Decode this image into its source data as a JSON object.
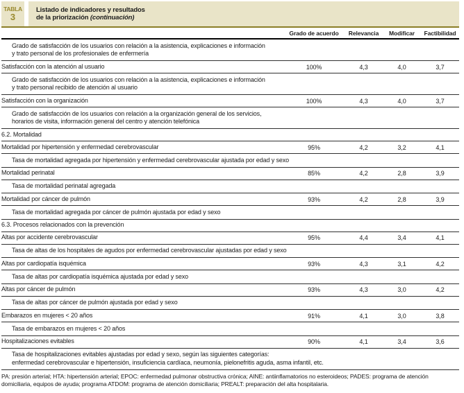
{
  "colors": {
    "band_beige": "#e9e4c8",
    "olive_text": "#99892d",
    "olive_rule": "#8a7d26",
    "rule_dark": "#2f2f2f"
  },
  "header": {
    "badge_label": "TABLA",
    "badge_number": "3",
    "title_line1": "Listado de indicadores y resultados",
    "title_line2_normal": "de la priorización ",
    "title_line2_italic": "(continuación)",
    "columns": [
      "Grado de acuerdo",
      "Relevancia",
      "Modificar",
      "Factibilidad"
    ]
  },
  "table": {
    "rows": [
      {
        "type": "desc",
        "lines": [
          "Grado de satisfacción de los usuarios con relación a la asistencia, explicaciones e información",
          "y trato personal de los profesionales de enfermería"
        ]
      },
      {
        "type": "indicator",
        "label": "Satisfacción con la atención al usuario",
        "values": [
          "100%",
          "4,3",
          "4,0",
          "3,7"
        ]
      },
      {
        "type": "desc",
        "lines": [
          "Grado de satisfacción de los usuarios con relación a la asistencia, explicaciones e información",
          "y trato personal recibido de atención al usuario"
        ]
      },
      {
        "type": "indicator",
        "label": "Satisfacción con la organización",
        "values": [
          "100%",
          "4,3",
          "4,0",
          "3,7"
        ]
      },
      {
        "type": "desc",
        "lines": [
          "Grado de satisfacción de los usuarios con relación a la organización general de los servicios,",
          "horarios de visita, información general del centro y atención telefónica"
        ]
      },
      {
        "type": "section",
        "label": "6.2. Mortalidad"
      },
      {
        "type": "indicator",
        "label": "Mortalidad por hipertensión y enfermedad cerebrovascular",
        "values": [
          "95%",
          "4,2",
          "3,2",
          "4,1"
        ]
      },
      {
        "type": "desc",
        "lines": [
          "Tasa de mortalidad agregada por hipertensión y enfermedad cerebrovascular ajustada por edad y sexo"
        ]
      },
      {
        "type": "indicator",
        "label": "Mortalidad perinatal",
        "values": [
          "85%",
          "4,2",
          "2,8",
          "3,9"
        ]
      },
      {
        "type": "desc",
        "lines": [
          "Tasa de mortalidad perinatal agregada"
        ]
      },
      {
        "type": "indicator",
        "label": "Mortalidad por cáncer de pulmón",
        "values": [
          "93%",
          "4,2",
          "2,8",
          "3,9"
        ]
      },
      {
        "type": "desc",
        "lines": [
          "Tasa de mortalidad agregada por cáncer de pulmón ajustada por edad y sexo"
        ]
      },
      {
        "type": "section",
        "label": "6.3. Procesos relacionados con la prevención"
      },
      {
        "type": "indicator",
        "label": "Altas por accidente cerebrovascular",
        "values": [
          "95%",
          "4,4",
          "3,4",
          "4,1"
        ]
      },
      {
        "type": "desc",
        "lines": [
          "Tasa de altas de los hospitales de agudos por enfermedad cerebrovascular ajustadas por edad y sexo"
        ]
      },
      {
        "type": "indicator",
        "label": "Altas por cardiopatía isquémica",
        "values": [
          "93%",
          "4,3",
          "3,1",
          "4,2"
        ]
      },
      {
        "type": "desc",
        "lines": [
          "Tasa de altas por cardiopatía isquémica ajustada por edad y sexo"
        ]
      },
      {
        "type": "indicator",
        "label": "Altas por cáncer de pulmón",
        "values": [
          "93%",
          "4,3",
          "3,0",
          "4,2"
        ]
      },
      {
        "type": "desc",
        "lines": [
          "Tasa de altas por cáncer de pulmón ajustada por edad y sexo"
        ]
      },
      {
        "type": "indicator",
        "label": "Embarazos en mujeres < 20 años",
        "values": [
          "91%",
          "4,1",
          "3,0",
          "3,8"
        ]
      },
      {
        "type": "desc",
        "lines": [
          "Tasa de embarazos en mujeres < 20 años"
        ]
      },
      {
        "type": "indicator",
        "label": "Hospitalizaciones evitables",
        "values": [
          "90%",
          "4,1",
          "3,4",
          "3,6"
        ]
      },
      {
        "type": "desc",
        "lines": [
          "Tasa de hospitalizaciones evitables ajustadas por edad y sexo, según las siguientes categorías:",
          "enfermedad cerebrovascular e hipertensión, insuficiencia cardíaca, neumonía, pielonefritis aguda, asma infantil, etc."
        ]
      }
    ]
  },
  "footnote": {
    "text": "PA: presión arterial; HTA: hipertensión arterial; EPOC: enfermedad pulmonar obstructiva crónica; AINE: antiinflamatorios no esteroideos; PADES: programa de atención domiciliaria, equipos de ayuda; programa ATDOM: programa de atención domiciliaria; PREALT: preparación del alta hospitalaria."
  }
}
